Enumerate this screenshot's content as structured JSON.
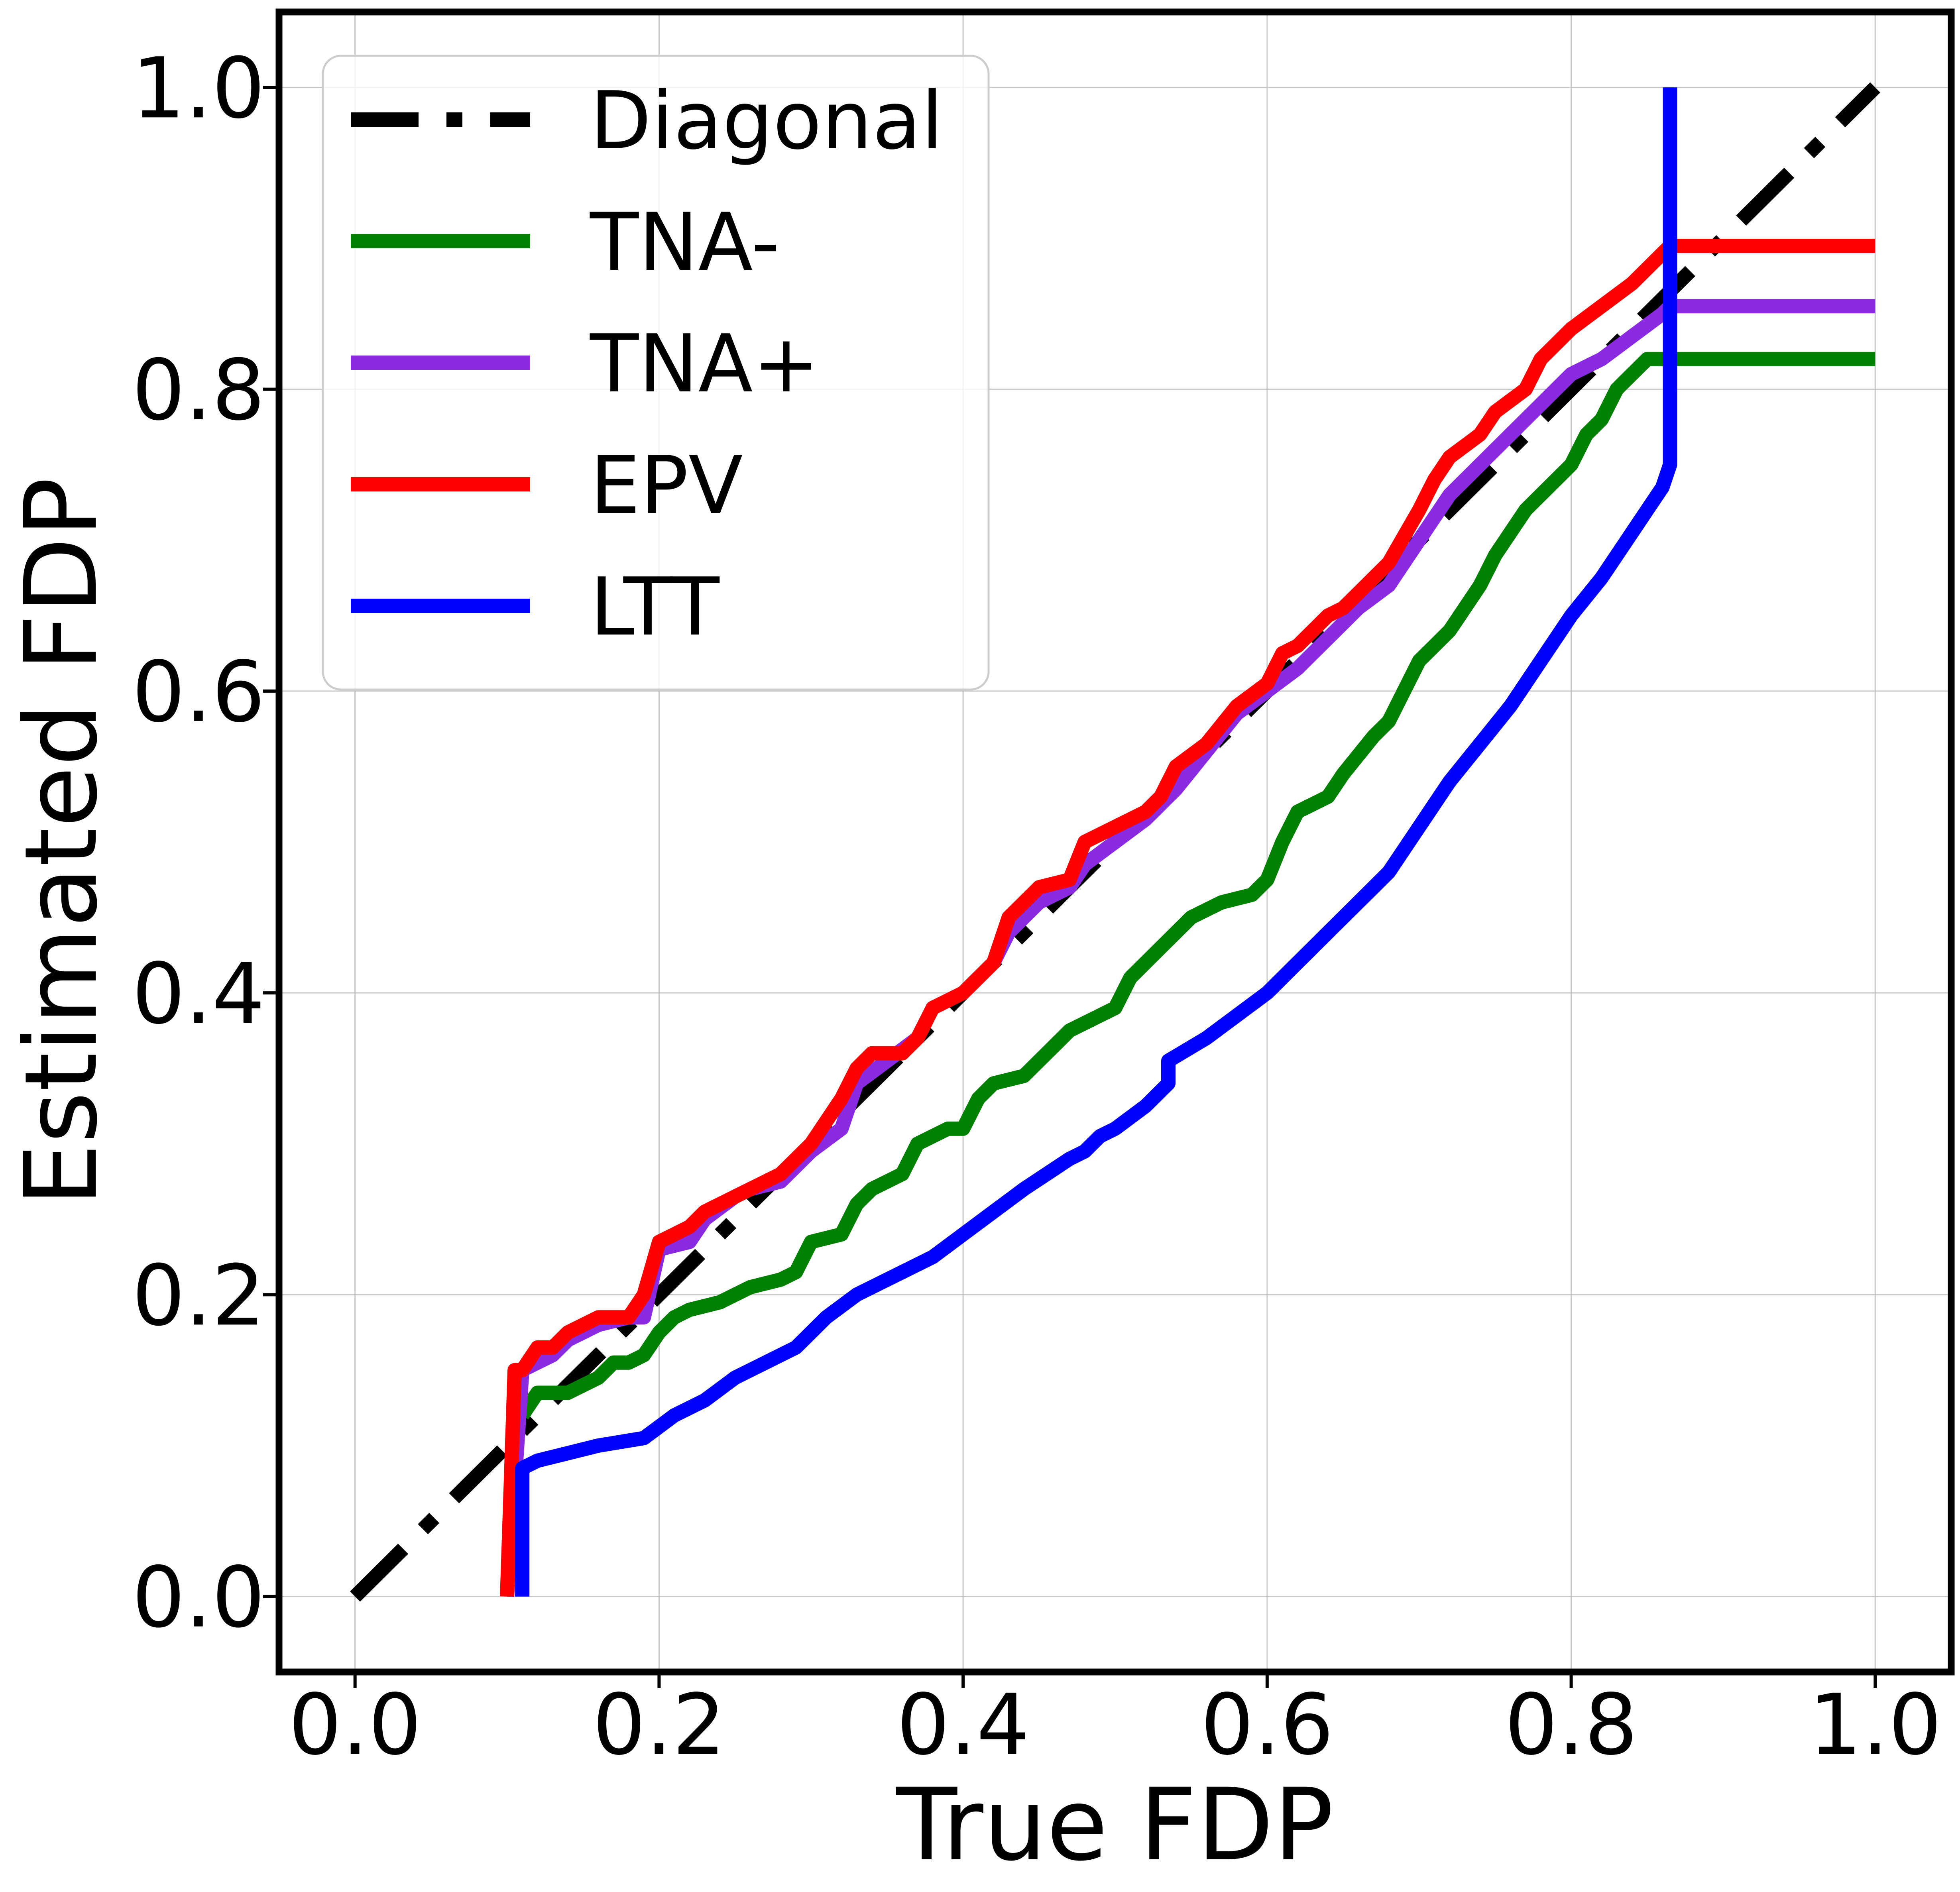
{
  "chart_data": {
    "type": "line",
    "title": "",
    "xlabel": "True FDP",
    "ylabel": "Estimated FDP",
    "xlim": [
      -0.05,
      1.05
    ],
    "ylim": [
      -0.05,
      1.05
    ],
    "xticks": [
      0.0,
      0.2,
      0.4,
      0.6,
      0.8,
      1.0
    ],
    "yticks": [
      0.0,
      0.2,
      0.4,
      0.6,
      0.8,
      1.0
    ],
    "xtick_labels": [
      "0.0",
      "0.2",
      "0.4",
      "0.6",
      "0.8",
      "1.0"
    ],
    "ytick_labels": [
      "0.0",
      "0.2",
      "0.4",
      "0.6",
      "0.8",
      "1.0"
    ],
    "grid": true,
    "legend_position": "top-left",
    "series": [
      {
        "name": "Diagonal",
        "color": "#000000",
        "style": "dashdot",
        "x": [
          0.0,
          1.0
        ],
        "y": [
          0.0,
          1.0
        ]
      },
      {
        "name": "TNA-",
        "color": "#008000",
        "style": "solid",
        "x": [
          0.11,
          0.12,
          0.14,
          0.15,
          0.16,
          0.17,
          0.18,
          0.19,
          0.2,
          0.21,
          0.22,
          0.24,
          0.26,
          0.28,
          0.29,
          0.3,
          0.32,
          0.33,
          0.34,
          0.36,
          0.37,
          0.39,
          0.4,
          0.41,
          0.42,
          0.44,
          0.46,
          0.47,
          0.49,
          0.5,
          0.51,
          0.53,
          0.55,
          0.57,
          0.59,
          0.6,
          0.61,
          0.62,
          0.64,
          0.65,
          0.67,
          0.68,
          0.69,
          0.7,
          0.71,
          0.72,
          0.74,
          0.75,
          0.77,
          0.78,
          0.8,
          0.81,
          0.82,
          0.83,
          0.84,
          0.85,
          0.86,
          0.865,
          0.9,
          1.0
        ],
        "y": [
          0.12,
          0.135,
          0.135,
          0.14,
          0.145,
          0.155,
          0.155,
          0.16,
          0.175,
          0.185,
          0.19,
          0.195,
          0.205,
          0.21,
          0.215,
          0.235,
          0.24,
          0.26,
          0.27,
          0.28,
          0.3,
          0.31,
          0.31,
          0.33,
          0.34,
          0.345,
          0.365,
          0.375,
          0.385,
          0.39,
          0.41,
          0.43,
          0.45,
          0.46,
          0.465,
          0.475,
          0.5,
          0.52,
          0.53,
          0.545,
          0.57,
          0.58,
          0.6,
          0.62,
          0.63,
          0.64,
          0.67,
          0.69,
          0.72,
          0.73,
          0.75,
          0.77,
          0.78,
          0.8,
          0.81,
          0.82,
          0.82,
          0.82,
          0.82,
          0.82
        ]
      },
      {
        "name": "TNA+",
        "color": "#8A2BE2",
        "style": "solid",
        "x": [
          0.1,
          0.11,
          0.12,
          0.13,
          0.14,
          0.16,
          0.18,
          0.19,
          0.2,
          0.22,
          0.23,
          0.25,
          0.26,
          0.28,
          0.3,
          0.32,
          0.33,
          0.35,
          0.37,
          0.38,
          0.4,
          0.42,
          0.43,
          0.45,
          0.47,
          0.48,
          0.5,
          0.52,
          0.54,
          0.56,
          0.58,
          0.6,
          0.62,
          0.64,
          0.66,
          0.68,
          0.7,
          0.72,
          0.74,
          0.76,
          0.78,
          0.8,
          0.82,
          0.84,
          0.86,
          0.865,
          0.9,
          1.0
        ],
        "y": [
          0.0,
          0.15,
          0.155,
          0.16,
          0.17,
          0.18,
          0.185,
          0.185,
          0.23,
          0.235,
          0.25,
          0.265,
          0.27,
          0.275,
          0.295,
          0.31,
          0.34,
          0.355,
          0.37,
          0.39,
          0.4,
          0.42,
          0.44,
          0.46,
          0.47,
          0.485,
          0.5,
          0.515,
          0.535,
          0.56,
          0.585,
          0.6,
          0.615,
          0.635,
          0.655,
          0.67,
          0.7,
          0.73,
          0.75,
          0.77,
          0.79,
          0.81,
          0.82,
          0.835,
          0.85,
          0.855,
          0.855,
          0.855
        ]
      },
      {
        "name": "EPV",
        "color": "#FF0000",
        "style": "solid",
        "x": [
          0.1,
          0.105,
          0.11,
          0.12,
          0.13,
          0.14,
          0.16,
          0.18,
          0.19,
          0.2,
          0.22,
          0.23,
          0.24,
          0.26,
          0.28,
          0.3,
          0.32,
          0.33,
          0.34,
          0.36,
          0.37,
          0.38,
          0.4,
          0.42,
          0.43,
          0.45,
          0.47,
          0.48,
          0.5,
          0.52,
          0.53,
          0.54,
          0.56,
          0.58,
          0.6,
          0.61,
          0.62,
          0.64,
          0.65,
          0.66,
          0.68,
          0.7,
          0.71,
          0.72,
          0.74,
          0.75,
          0.77,
          0.78,
          0.8,
          0.82,
          0.84,
          0.86,
          0.865,
          0.9,
          1.0
        ],
        "y": [
          0.0,
          0.15,
          0.15,
          0.165,
          0.165,
          0.175,
          0.185,
          0.185,
          0.2,
          0.235,
          0.245,
          0.255,
          0.26,
          0.27,
          0.28,
          0.3,
          0.33,
          0.35,
          0.36,
          0.36,
          0.37,
          0.39,
          0.4,
          0.42,
          0.45,
          0.47,
          0.475,
          0.5,
          0.51,
          0.52,
          0.53,
          0.55,
          0.565,
          0.59,
          0.605,
          0.625,
          0.63,
          0.65,
          0.655,
          0.665,
          0.685,
          0.72,
          0.74,
          0.755,
          0.77,
          0.785,
          0.8,
          0.82,
          0.84,
          0.855,
          0.87,
          0.89,
          0.895,
          0.895,
          0.895
        ]
      },
      {
        "name": "LTT",
        "color": "#0000FF",
        "style": "solid",
        "x": [
          0.11,
          0.11,
          0.12,
          0.14,
          0.16,
          0.19,
          0.21,
          0.23,
          0.25,
          0.27,
          0.29,
          0.31,
          0.33,
          0.35,
          0.38,
          0.4,
          0.42,
          0.44,
          0.47,
          0.48,
          0.49,
          0.5,
          0.52,
          0.535,
          0.535,
          0.56,
          0.58,
          0.6,
          0.62,
          0.64,
          0.66,
          0.68,
          0.7,
          0.72,
          0.74,
          0.76,
          0.78,
          0.8,
          0.82,
          0.84,
          0.86,
          0.865,
          0.865
        ],
        "y": [
          0.0,
          0.085,
          0.09,
          0.095,
          0.1,
          0.105,
          0.12,
          0.13,
          0.145,
          0.155,
          0.165,
          0.185,
          0.2,
          0.21,
          0.225,
          0.24,
          0.255,
          0.27,
          0.29,
          0.295,
          0.305,
          0.31,
          0.325,
          0.34,
          0.355,
          0.37,
          0.385,
          0.4,
          0.42,
          0.44,
          0.46,
          0.48,
          0.51,
          0.54,
          0.565,
          0.59,
          0.62,
          0.65,
          0.675,
          0.705,
          0.735,
          0.75,
          1.0
        ]
      }
    ]
  }
}
